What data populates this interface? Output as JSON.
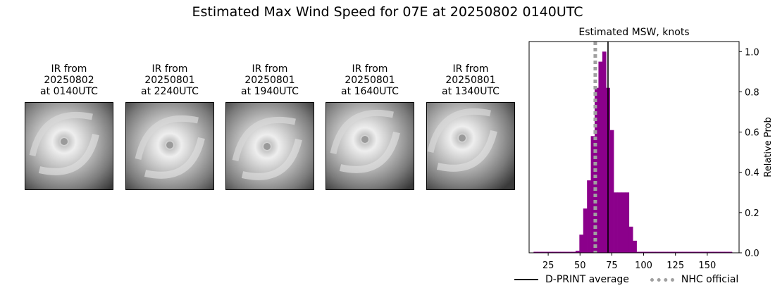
{
  "page": {
    "title": "Estimated Max Wind Speed for 07E at 20250802 0140UTC"
  },
  "ir_panels": [
    {
      "line1": "IR from",
      "line2": "20250802",
      "line3": "at 0140UTC"
    },
    {
      "line1": "IR from",
      "line2": "20250801",
      "line3": "at 2240UTC"
    },
    {
      "line1": "IR from",
      "line2": "20250801",
      "line3": "at 1940UTC"
    },
    {
      "line1": "IR from",
      "line2": "20250801",
      "line3": "at 1640UTC"
    },
    {
      "line1": "IR from",
      "line2": "20250801",
      "line3": "at 1340UTC"
    }
  ],
  "chart_data": {
    "type": "bar",
    "title": "Estimated MSW, knots",
    "xlabel": "",
    "ylabel": "Relative Prob",
    "xlim": [
      10,
      175
    ],
    "ylim": [
      0,
      1.05
    ],
    "xticks": [
      25,
      50,
      75,
      100,
      125,
      150
    ],
    "yticks": [
      0.0,
      0.2,
      0.4,
      0.6,
      0.8,
      1.0
    ],
    "y_axis_side": "right",
    "bar_color": "#8b008b",
    "bin_width": 3,
    "bins": [
      {
        "x": 15,
        "y": 0.005
      },
      {
        "x": 18,
        "y": 0.005
      },
      {
        "x": 21,
        "y": 0.005
      },
      {
        "x": 24,
        "y": 0.005
      },
      {
        "x": 27,
        "y": 0.005
      },
      {
        "x": 30,
        "y": 0.005
      },
      {
        "x": 33,
        "y": 0.005
      },
      {
        "x": 36,
        "y": 0.005
      },
      {
        "x": 39,
        "y": 0.005
      },
      {
        "x": 42,
        "y": 0.005
      },
      {
        "x": 45,
        "y": 0.005
      },
      {
        "x": 48,
        "y": 0.01
      },
      {
        "x": 51,
        "y": 0.09
      },
      {
        "x": 54,
        "y": 0.22
      },
      {
        "x": 57,
        "y": 0.36
      },
      {
        "x": 60,
        "y": 0.58
      },
      {
        "x": 63,
        "y": 0.82
      },
      {
        "x": 66,
        "y": 0.95
      },
      {
        "x": 69,
        "y": 1.0
      },
      {
        "x": 72,
        "y": 0.82
      },
      {
        "x": 75,
        "y": 0.61
      },
      {
        "x": 78,
        "y": 0.3
      },
      {
        "x": 81,
        "y": 0.3
      },
      {
        "x": 84,
        "y": 0.3
      },
      {
        "x": 87,
        "y": 0.3
      },
      {
        "x": 90,
        "y": 0.13
      },
      {
        "x": 93,
        "y": 0.06
      },
      {
        "x": 96,
        "y": 0.005
      },
      {
        "x": 99,
        "y": 0.005
      },
      {
        "x": 102,
        "y": 0.005
      },
      {
        "x": 105,
        "y": 0.005
      },
      {
        "x": 108,
        "y": 0.005
      },
      {
        "x": 111,
        "y": 0.005
      },
      {
        "x": 114,
        "y": 0.005
      },
      {
        "x": 117,
        "y": 0.005
      },
      {
        "x": 120,
        "y": 0.005
      },
      {
        "x": 123,
        "y": 0.005
      },
      {
        "x": 126,
        "y": 0.005
      },
      {
        "x": 129,
        "y": 0.005
      },
      {
        "x": 132,
        "y": 0.005
      },
      {
        "x": 135,
        "y": 0.005
      },
      {
        "x": 138,
        "y": 0.005
      },
      {
        "x": 141,
        "y": 0.005
      },
      {
        "x": 144,
        "y": 0.005
      },
      {
        "x": 147,
        "y": 0.005
      },
      {
        "x": 150,
        "y": 0.005
      },
      {
        "x": 153,
        "y": 0.005
      },
      {
        "x": 156,
        "y": 0.005
      },
      {
        "x": 159,
        "y": 0.005
      },
      {
        "x": 162,
        "y": 0.005
      },
      {
        "x": 165,
        "y": 0.005
      },
      {
        "x": 168,
        "y": 0.005
      }
    ],
    "lines": [
      {
        "name": "D-PRINT average",
        "x": 72,
        "color": "#000000",
        "style": "solid"
      },
      {
        "name": "NHC official",
        "x": 62,
        "color": "#a0a0a0",
        "style": "dotted"
      }
    ],
    "legend": "bottom-right"
  }
}
